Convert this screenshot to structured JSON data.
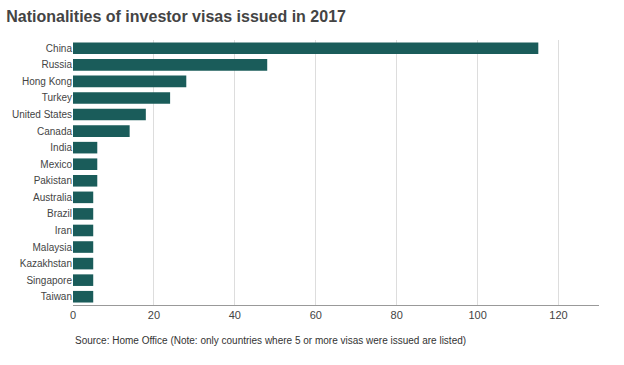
{
  "chart_data": {
    "type": "bar",
    "orientation": "horizontal",
    "title": "Nationalities of investor visas issued in 2017",
    "categories": [
      "China",
      "Russia",
      "Hong Kong",
      "Turkey",
      "United States",
      "Canada",
      "India",
      "Mexico",
      "Pakistan",
      "Australia",
      "Brazil",
      "Iran",
      "Malaysia",
      "Kazakhstan",
      "Singapore",
      "Taiwan"
    ],
    "values": [
      115,
      48,
      28,
      24,
      18,
      14,
      6,
      6,
      6,
      5,
      5,
      5,
      5,
      5,
      5,
      5
    ],
    "color": "#1a5c5a",
    "xlim": [
      0,
      130
    ],
    "xticks": [
      0,
      20,
      40,
      60,
      80,
      100,
      120
    ],
    "grid": true,
    "annotations": [
      "Source: Home Office (Note: only countries where 5 or more visas were issued are listed)"
    ]
  }
}
